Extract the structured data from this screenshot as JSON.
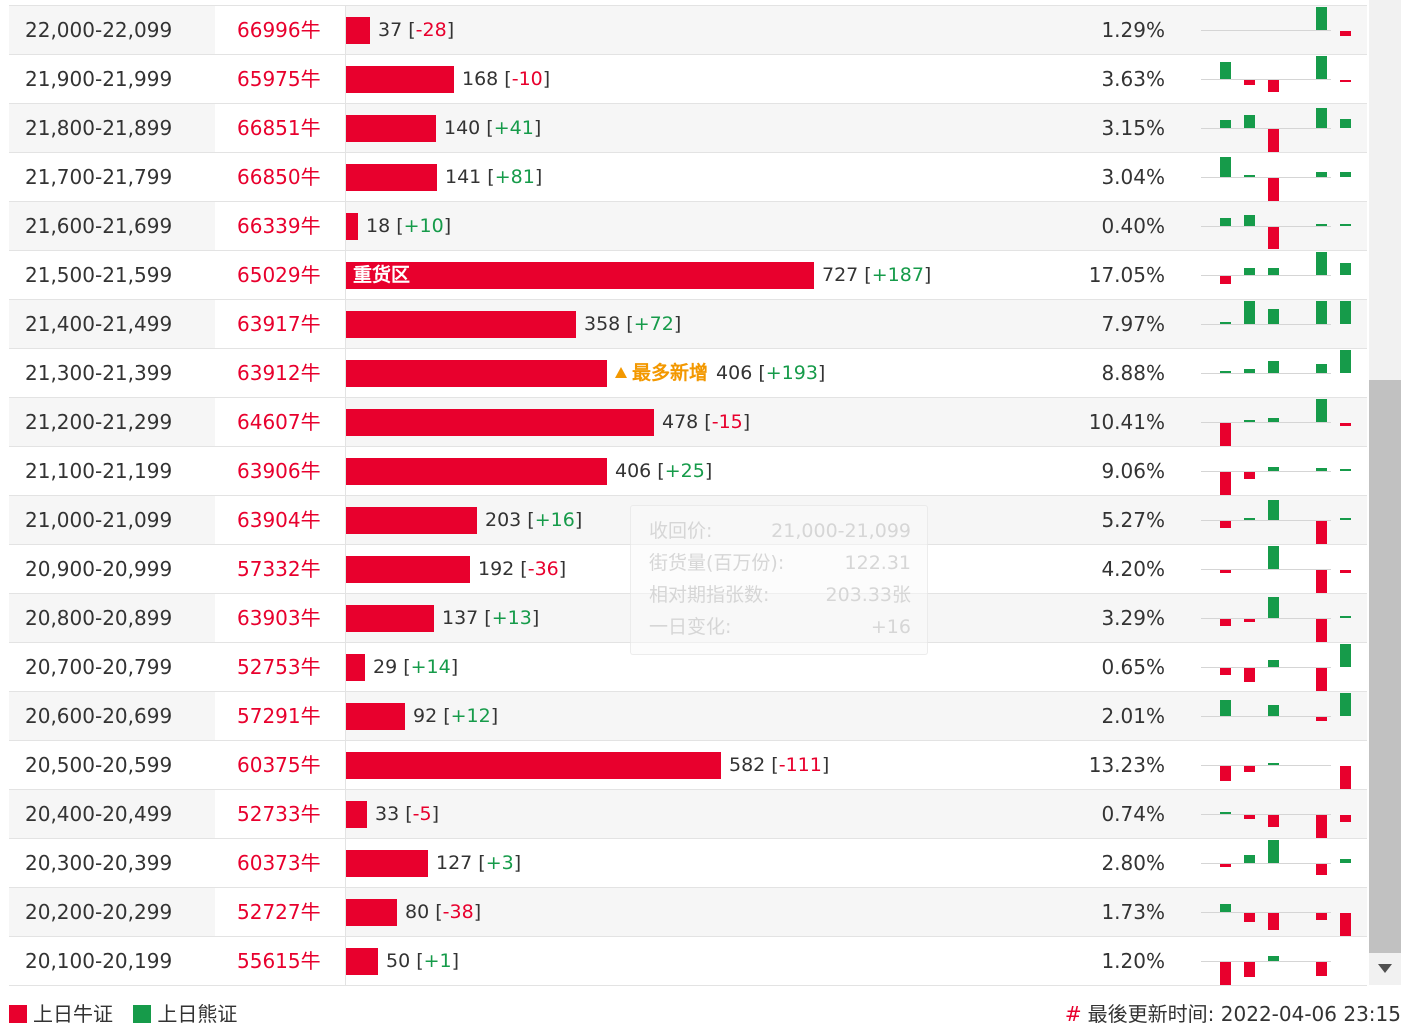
{
  "colors": {
    "bull": "#e8002d",
    "bear": "#169b4a",
    "hot": "#f39800"
  },
  "max_volume": 727,
  "rows": [
    {
      "range": "22,000-22,099",
      "code": "66996牛",
      "volume": "37",
      "change": "-28",
      "pct": "1.29%",
      "tag": "",
      "badge": "",
      "history": [
        0,
        0,
        0,
        0,
        23,
        -5
      ]
    },
    {
      "range": "21,900-21,999",
      "code": "65975牛",
      "volume": "168",
      "change": "-10",
      "pct": "3.63%",
      "tag": "",
      "badge": "",
      "history": [
        17,
        -5,
        -12,
        0,
        23,
        -2
      ]
    },
    {
      "range": "21,800-21,899",
      "code": "66851牛",
      "volume": "140",
      "change": "+41",
      "pct": "3.15%",
      "tag": "",
      "badge": "",
      "history": [
        8,
        13,
        -23,
        0,
        20,
        9
      ]
    },
    {
      "range": "21,700-21,799",
      "code": "66850牛",
      "volume": "141",
      "change": "+81",
      "pct": "3.04%",
      "tag": "",
      "badge": "",
      "history": [
        20,
        2,
        -23,
        0,
        5,
        5
      ]
    },
    {
      "range": "21,600-21,699",
      "code": "66339牛",
      "volume": "18",
      "change": "+10",
      "pct": "0.40%",
      "tag": "",
      "badge": "",
      "history": [
        8,
        11,
        -22,
        0,
        2,
        2
      ]
    },
    {
      "range": "21,500-21,599",
      "code": "65029牛",
      "volume": "727",
      "change": "+187",
      "pct": "17.05%",
      "tag": "重货区",
      "badge": "",
      "history": [
        -8,
        7,
        7,
        0,
        23,
        12
      ]
    },
    {
      "range": "21,400-21,499",
      "code": "63917牛",
      "volume": "358",
      "change": "+72",
      "pct": "7.97%",
      "tag": "",
      "badge": "",
      "history": [
        2,
        23,
        15,
        0,
        23,
        23
      ]
    },
    {
      "range": "21,300-21,399",
      "code": "63912牛",
      "volume": "406",
      "change": "+193",
      "pct": "8.88%",
      "tag": "",
      "badge": "最多新增",
      "history": [
        2,
        4,
        12,
        0,
        9,
        23
      ]
    },
    {
      "range": "21,200-21,299",
      "code": "64607牛",
      "volume": "478",
      "change": "-15",
      "pct": "10.41%",
      "tag": "",
      "badge": "",
      "history": [
        -23,
        2,
        4,
        0,
        23,
        -3
      ]
    },
    {
      "range": "21,100-21,199",
      "code": "63906牛",
      "volume": "406",
      "change": "+25",
      "pct": "9.06%",
      "tag": "",
      "badge": "",
      "history": [
        -23,
        -7,
        4,
        0,
        3,
        2
      ]
    },
    {
      "range": "21,000-21,099",
      "code": "63904牛",
      "volume": "203",
      "change": "+16",
      "pct": "5.27%",
      "tag": "",
      "badge": "",
      "history": [
        -7,
        2,
        20,
        0,
        -23,
        2
      ]
    },
    {
      "range": "20,900-20,999",
      "code": "57332牛",
      "volume": "192",
      "change": "-36",
      "pct": "4.20%",
      "tag": "",
      "badge": "",
      "history": [
        -3,
        0,
        23,
        0,
        -23,
        -3
      ]
    },
    {
      "range": "20,800-20,899",
      "code": "63903牛",
      "volume": "137",
      "change": "+13",
      "pct": "3.29%",
      "tag": "",
      "badge": "",
      "history": [
        -7,
        -3,
        21,
        0,
        -23,
        2
      ]
    },
    {
      "range": "20,700-20,799",
      "code": "52753牛",
      "volume": "29",
      "change": "+14",
      "pct": "0.65%",
      "tag": "",
      "badge": "",
      "history": [
        -7,
        -14,
        7,
        0,
        -23,
        23
      ]
    },
    {
      "range": "20,600-20,699",
      "code": "57291牛",
      "volume": "92",
      "change": "+12",
      "pct": "2.01%",
      "tag": "",
      "badge": "",
      "history": [
        16,
        0,
        11,
        0,
        -4,
        23
      ]
    },
    {
      "range": "20,500-20,599",
      "code": "60375牛",
      "volume": "582",
      "change": "-111",
      "pct": "13.23%",
      "tag": "",
      "badge": "",
      "history": [
        -15,
        -6,
        2,
        0,
        0,
        -23
      ]
    },
    {
      "range": "20,400-20,499",
      "code": "52733牛",
      "volume": "33",
      "change": "-5",
      "pct": "0.74%",
      "tag": "",
      "badge": "",
      "history": [
        2,
        -4,
        -12,
        0,
        -23,
        -7
      ]
    },
    {
      "range": "20,300-20,399",
      "code": "60373牛",
      "volume": "127",
      "change": "+3",
      "pct": "2.80%",
      "tag": "",
      "badge": "",
      "history": [
        -3,
        8,
        23,
        0,
        -11,
        4
      ]
    },
    {
      "range": "20,200-20,299",
      "code": "52727牛",
      "volume": "80",
      "change": "-38",
      "pct": "1.73%",
      "tag": "",
      "badge": "",
      "history": [
        8,
        -9,
        -17,
        0,
        -7,
        -23
      ]
    },
    {
      "range": "20,100-20,199",
      "code": "55615牛",
      "volume": "50",
      "change": "+1",
      "pct": "1.20%",
      "tag": "",
      "badge": "",
      "history": [
        -23,
        -15,
        5,
        0,
        -14,
        0
      ]
    }
  ],
  "tooltip": {
    "items": [
      {
        "label": "收回价:",
        "value": "21,000-21,099"
      },
      {
        "label": "街货量(百万份):",
        "value": "122.31"
      },
      {
        "label": "相对期指张数:",
        "value": "203.33张"
      },
      {
        "label": "一日变化:",
        "value": "+16"
      }
    ]
  },
  "legend": {
    "bull_label": "上日牛证",
    "bear_label": "上日熊证"
  },
  "footer": {
    "hash": "#",
    "label": "最後更新时间:",
    "timestamp": "2022-04-06 23:15"
  }
}
